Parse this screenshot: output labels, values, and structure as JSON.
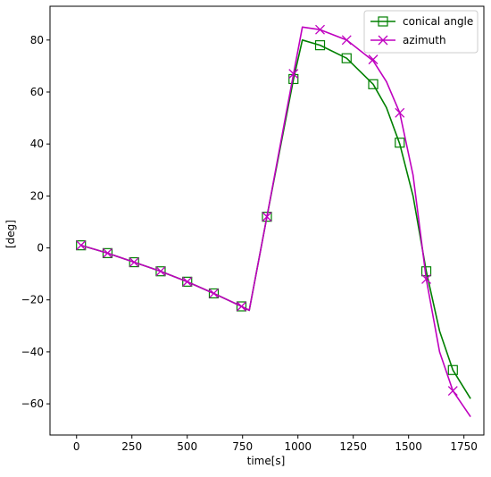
{
  "chart_data": {
    "type": "line",
    "title": "",
    "xlabel": "time[s]",
    "ylabel": "[deg]",
    "xlim": [
      -120,
      1840
    ],
    "ylim": [
      -72,
      93
    ],
    "xticks": [
      0,
      250,
      500,
      750,
      1000,
      1250,
      1500,
      1750
    ],
    "yticks": [
      -60,
      -40,
      -20,
      0,
      20,
      40,
      60,
      80
    ],
    "xtick_labels": [
      "0",
      "250",
      "500",
      "750",
      "1000",
      "1250",
      "1500",
      "1750"
    ],
    "ytick_labels": [
      "−60",
      "−40",
      "−20",
      "0",
      "20",
      "40",
      "60",
      "80"
    ],
    "grid": false,
    "legend_position": "top-right",
    "series": [
      {
        "name": "conical angle",
        "color": "#008000",
        "marker": "square",
        "line": {
          "x": [
            20,
            140,
            260,
            380,
            500,
            620,
            745,
            780,
            860,
            980,
            1020,
            1100,
            1220,
            1340,
            1400,
            1460,
            1520,
            1580,
            1640,
            1700,
            1780
          ],
          "y": [
            1,
            -2,
            -5.5,
            -9,
            -13,
            -17.5,
            -22.5,
            -24,
            12,
            65,
            80,
            78,
            73,
            63,
            54,
            40,
            20,
            -9,
            -32,
            -47,
            -58
          ]
        },
        "markers": {
          "x": [
            20,
            140,
            260,
            380,
            500,
            620,
            745,
            860,
            980,
            1100,
            1220,
            1340,
            1460,
            1580,
            1700
          ],
          "y": [
            1,
            -2,
            -5.5,
            -9,
            -13,
            -17.5,
            -22.5,
            12,
            65,
            78,
            73,
            63,
            40.5,
            -9,
            -47
          ]
        }
      },
      {
        "name": "azimuth",
        "color": "#bf00bf",
        "marker": "x",
        "line": {
          "x": [
            20,
            140,
            260,
            380,
            500,
            620,
            745,
            780,
            860,
            980,
            1020,
            1100,
            1220,
            1340,
            1400,
            1460,
            1520,
            1580,
            1640,
            1700,
            1780
          ],
          "y": [
            1,
            -2,
            -5.5,
            -9,
            -13,
            -17.5,
            -22.5,
            -24,
            12,
            67,
            85,
            84,
            80,
            72,
            64,
            52,
            28,
            -12,
            -40,
            -55,
            -65
          ]
        },
        "markers": {
          "x": [
            20,
            140,
            260,
            380,
            500,
            620,
            745,
            860,
            980,
            1100,
            1220,
            1340,
            1460,
            1580,
            1700
          ],
          "y": [
            1,
            -2,
            -5.5,
            -9,
            -13,
            -17.5,
            -22.5,
            12,
            67,
            84,
            80,
            72.5,
            52,
            -12,
            -55
          ]
        }
      }
    ]
  }
}
